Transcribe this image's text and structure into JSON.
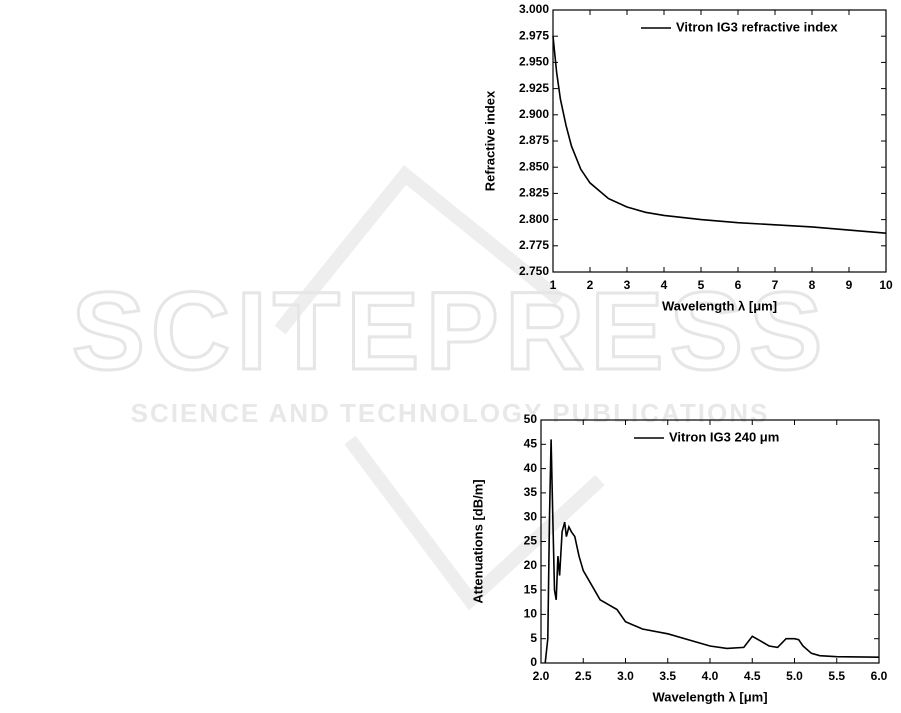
{
  "watermark": {
    "title": "SCITEPRESS",
    "subtitle": "SCIENCE AND TECHNOLOGY PUBLICATIONS"
  },
  "chart_data": [
    {
      "type": "line",
      "xlabel": "Wavelength λ [μm]",
      "ylabel": "Refractive index",
      "legend": "upper right",
      "x": [
        1.0,
        1.1,
        1.2,
        1.35,
        1.5,
        1.75,
        2.0,
        2.5,
        3.0,
        3.5,
        4.0,
        5.0,
        6.0,
        7.0,
        8.0,
        9.0,
        10.0
      ],
      "series": [
        {
          "name": "Vitron IG3 refractive index",
          "color": "#000000",
          "values": [
            2.975,
            2.94,
            2.915,
            2.89,
            2.87,
            2.848,
            2.835,
            2.82,
            2.812,
            2.807,
            2.804,
            2.8,
            2.797,
            2.795,
            2.793,
            2.79,
            2.787
          ]
        }
      ],
      "xlim": [
        1,
        10
      ],
      "xticks": [
        1,
        2,
        3,
        4,
        5,
        6,
        7,
        8,
        9,
        10
      ],
      "ylim": [
        2.75,
        3.0
      ],
      "yticks": [
        {
          "value": 2.75,
          "label": "2.750"
        },
        {
          "value": 2.775,
          "label": "2.775"
        },
        {
          "value": 2.8,
          "label": "2.800"
        },
        {
          "value": 2.825,
          "label": "2.825"
        },
        {
          "value": 2.85,
          "label": "2.850"
        },
        {
          "value": 2.875,
          "label": "2.875"
        },
        {
          "value": 2.9,
          "label": "2.900"
        },
        {
          "value": 2.925,
          "label": "2.925"
        },
        {
          "value": 2.95,
          "label": "2.950"
        },
        {
          "value": 2.975,
          "label": "2.975"
        },
        {
          "value": 3.0,
          "label": "3.000"
        }
      ]
    },
    {
      "type": "line",
      "xlabel": "Wavelength λ [μm]",
      "ylabel": "Attenuations [dB/m]",
      "legend": "upper right",
      "x": [
        2.05,
        2.08,
        2.1,
        2.12,
        2.14,
        2.16,
        2.18,
        2.2,
        2.22,
        2.25,
        2.28,
        2.3,
        2.33,
        2.36,
        2.4,
        2.45,
        2.5,
        2.6,
        2.7,
        2.8,
        2.9,
        3.0,
        3.2,
        3.5,
        3.8,
        4.0,
        4.2,
        4.4,
        4.5,
        4.6,
        4.7,
        4.8,
        4.9,
        5.0,
        5.05,
        5.1,
        5.2,
        5.3,
        5.5,
        6.0
      ],
      "series": [
        {
          "name": "Vitron IG3 240 μm",
          "color": "#000000",
          "values": [
            0,
            5,
            30,
            46,
            30,
            15,
            13,
            22,
            18,
            27,
            29,
            26,
            28,
            27,
            26,
            22,
            19,
            16,
            13,
            12,
            11,
            8.5,
            7,
            6,
            4.5,
            3.5,
            3,
            3.2,
            5.5,
            4.5,
            3.5,
            3.2,
            5,
            5,
            4.8,
            3.5,
            2,
            1.5,
            1.3,
            1.2
          ]
        }
      ],
      "xlim": [
        2,
        6
      ],
      "xticks": [
        {
          "value": 2,
          "label": "2.0"
        },
        {
          "value": 2.5,
          "label": "2.5"
        },
        {
          "value": 3,
          "label": "3.0"
        },
        {
          "value": 3.5,
          "label": "3.5"
        },
        {
          "value": 4,
          "label": "4.0"
        },
        {
          "value": 4.5,
          "label": "4.5"
        },
        {
          "value": 5,
          "label": "5.0"
        },
        {
          "value": 5.5,
          "label": "5.5"
        },
        {
          "value": 6,
          "label": "6.0"
        }
      ],
      "ylim": [
        0,
        50
      ],
      "yticks": [
        0,
        5,
        10,
        15,
        20,
        25,
        30,
        35,
        40,
        45,
        50
      ]
    }
  ]
}
